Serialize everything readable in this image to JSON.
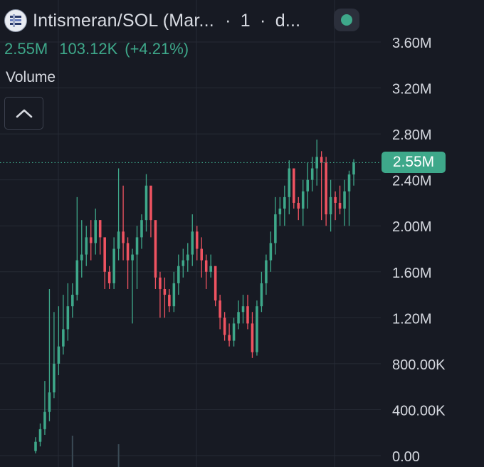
{
  "header": {
    "title": "Intismeran/SOL (Mar...",
    "separator_1": "·",
    "interval": "1",
    "separator_2": "·",
    "timeframe_truncated": "d...",
    "logo_icon": "token-logo-icon",
    "status_icon": "market-open-dot-icon"
  },
  "stats": {
    "last": "2.55M",
    "change": "103.12K",
    "change_pct": "(+4.21%)"
  },
  "volume_label": "Volume",
  "collapse_icon": "chevron-up-icon",
  "price_tag": "2.55M",
  "colors": {
    "background": "#171a23",
    "grid": "#262a35",
    "up": "#3ea88a",
    "down": "#ef5361",
    "axis_text": "#d6d9e0",
    "price_line": "#3ea88a"
  },
  "chart_data": {
    "type": "candlestick",
    "y_ticks": [
      "0.00",
      "400.00K",
      "800.00K",
      "1.20M",
      "1.60M",
      "2.00M",
      "2.40M",
      "2.80M",
      "3.20M",
      "3.60M"
    ],
    "y_tick_values": [
      0,
      400000,
      800000,
      1200000,
      1600000,
      2000000,
      2400000,
      2800000,
      3200000,
      3600000
    ],
    "ylim": [
      0,
      3600000
    ],
    "y_axis_position": "right",
    "grid": true,
    "last_price": 2550000,
    "ohlc_open": [
      40000,
      120000,
      230000,
      380000,
      550000,
      800000,
      950000,
      1100000,
      1300000,
      1400000,
      1700000,
      1750000,
      1900000,
      1850000,
      2050000,
      1900000,
      1600000,
      1500000,
      1800000,
      1950000,
      1850000,
      1700000,
      1750000,
      1900000,
      2050000,
      2350000,
      2050000,
      1550000,
      1450000,
      1400000,
      1300000,
      1500000,
      1650000,
      1700000,
      1750000,
      1950000,
      1800000,
      1700000,
      1600000,
      1650000,
      1350000,
      1200000,
      1050000,
      1000000,
      1150000,
      1250000,
      1300000,
      1150000,
      900000,
      1300000,
      1500000,
      1700000,
      1850000,
      2100000,
      2150000,
      2250000,
      2500000,
      2200000,
      2150000,
      2300000,
      2400000,
      2500000,
      2600000,
      2550000,
      2100000,
      2250000,
      2200000,
      2150000,
      2300000,
      2446880
    ],
    "ohlc_close": [
      120000,
      230000,
      380000,
      550000,
      800000,
      950000,
      1100000,
      1300000,
      1400000,
      1700000,
      1750000,
      1900000,
      1850000,
      2050000,
      1900000,
      1600000,
      1500000,
      1800000,
      1950000,
      1850000,
      1700000,
      1750000,
      1900000,
      2050000,
      2350000,
      2050000,
      1550000,
      1450000,
      1400000,
      1300000,
      1500000,
      1650000,
      1700000,
      1750000,
      1950000,
      1800000,
      1700000,
      1600000,
      1650000,
      1350000,
      1200000,
      1050000,
      1000000,
      1150000,
      1250000,
      1300000,
      1150000,
      900000,
      1300000,
      1500000,
      1700000,
      1850000,
      2100000,
      2150000,
      2250000,
      2500000,
      2200000,
      2150000,
      2300000,
      2400000,
      2500000,
      2600000,
      2550000,
      2100000,
      2250000,
      2200000,
      2150000,
      2300000,
      2446880,
      2550000
    ],
    "ohlc_high": [
      160000,
      280000,
      650000,
      1450000,
      1250000,
      1300000,
      1400000,
      1500000,
      1500000,
      2250000,
      2050000,
      2000000,
      2050000,
      2150000,
      2050000,
      1750000,
      1650000,
      1900000,
      2500000,
      2350000,
      1900000,
      1800000,
      2000000,
      2100000,
      2450000,
      2150000,
      1800000,
      1600000,
      1550000,
      1450000,
      1600000,
      1750000,
      1800000,
      1850000,
      2100000,
      2000000,
      1900000,
      1750000,
      1750000,
      1550000,
      1400000,
      1250000,
      1150000,
      1200000,
      1350000,
      1400000,
      1400000,
      1250000,
      1350000,
      1600000,
      1750000,
      1950000,
      2250000,
      2250000,
      2350000,
      2570000,
      2450000,
      2250000,
      2400000,
      2550000,
      2600000,
      2750000,
      2650000,
      2600000,
      2400000,
      2300000,
      2350000,
      2400000,
      2480000,
      2580000
    ],
    "ohlc_low": [
      20000,
      80000,
      180000,
      300000,
      500000,
      700000,
      880000,
      1000000,
      1200000,
      1350000,
      1550000,
      1650000,
      1700000,
      1750000,
      1750000,
      1450000,
      1450000,
      1450000,
      1700000,
      1700000,
      1450000,
      1150000,
      1450000,
      1800000,
      1950000,
      1900000,
      1450000,
      1200000,
      1200000,
      1250000,
      1250000,
      1400000,
      1550000,
      1600000,
      1650000,
      1700000,
      1550000,
      1450000,
      1550000,
      1300000,
      1100000,
      1000000,
      950000,
      950000,
      1100000,
      1150000,
      1100000,
      850000,
      870000,
      1250000,
      1400000,
      1600000,
      1750000,
      2000000,
      2000000,
      2100000,
      2150000,
      2050000,
      2000000,
      2150000,
      2300000,
      2350000,
      2050000,
      2000000,
      1950000,
      2050000,
      2100000,
      2000000,
      2000000,
      2350000
    ],
    "volume_bars": [
      {
        "index": 8,
        "fraction": 0.55
      },
      {
        "index": 18,
        "fraction": 0.4
      }
    ]
  }
}
